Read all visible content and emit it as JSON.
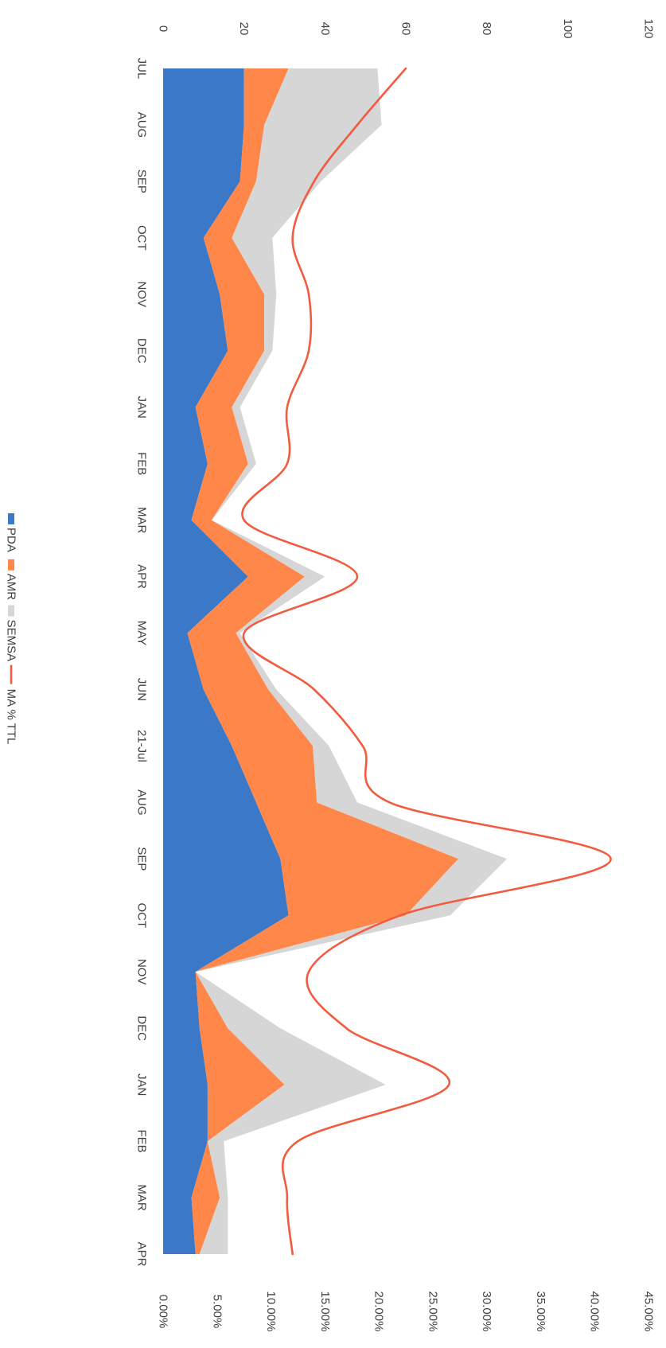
{
  "chart_data": {
    "type": "area",
    "orientation": "rotated-90-clockwise",
    "categories": [
      "JUL",
      "AUG",
      "SEP",
      "OCT",
      "NOV",
      "DEC",
      "JAN",
      "FEB",
      "MAR",
      "APR",
      "MAY",
      "JUN",
      "21-Jul",
      "AUG",
      "SEP",
      "OCT",
      "NOV",
      "DEC",
      "JAN",
      "FEB",
      "MAR",
      "APR"
    ],
    "y_left_ticks": [
      "0",
      "20",
      "40",
      "60",
      "80",
      "100",
      "120"
    ],
    "y_right_ticks": [
      "0.00%",
      "5.00%",
      "10.00%",
      "15.00%",
      "20.00%",
      "25.00%",
      "30.00%",
      "35.00%",
      "40.00%",
      "45.00%"
    ],
    "y_left_range": [
      0,
      120
    ],
    "y_right_range": [
      0,
      45
    ],
    "stacking": "stacked",
    "series": [
      {
        "name": "PDA",
        "kind": "area",
        "color": "#3B78C8",
        "values": [
          20,
          20,
          19,
          10,
          14,
          16,
          8,
          11,
          7,
          21,
          6,
          10,
          17,
          23,
          29,
          31,
          8,
          9,
          11,
          11,
          7,
          8
        ]
      },
      {
        "name": "AMR",
        "kind": "area",
        "color": "#FF874A",
        "values": [
          11,
          5,
          4,
          7,
          11,
          9,
          9,
          10,
          5,
          14,
          12,
          16,
          20,
          15,
          44,
          29,
          0,
          7,
          19,
          0,
          7,
          1
        ]
      },
      {
        "name": "SEMSA",
        "kind": "area",
        "color": "#D6D6D6",
        "values": [
          22,
          29,
          16,
          10,
          3,
          2,
          2,
          2,
          0,
          5,
          1,
          2,
          4,
          10,
          12,
          11,
          0,
          13,
          25,
          4,
          2,
          7
        ]
      },
      {
        "name": "MA % TTL",
        "kind": "line",
        "axis": "right",
        "color": "#F35B41",
        "values": [
          22.5,
          18,
          14,
          12,
          13.5,
          13.5,
          11.5,
          11.5,
          7.5,
          18,
          7.5,
          14,
          18.5,
          21,
          41.5,
          22,
          13.5,
          17,
          26.5,
          12.5,
          11.5,
          12
        ]
      }
    ],
    "legend": {
      "placement": "bottom",
      "items": [
        "PDA",
        "AMR",
        "SEMSA",
        "MA % TTL"
      ]
    },
    "grid": false
  }
}
